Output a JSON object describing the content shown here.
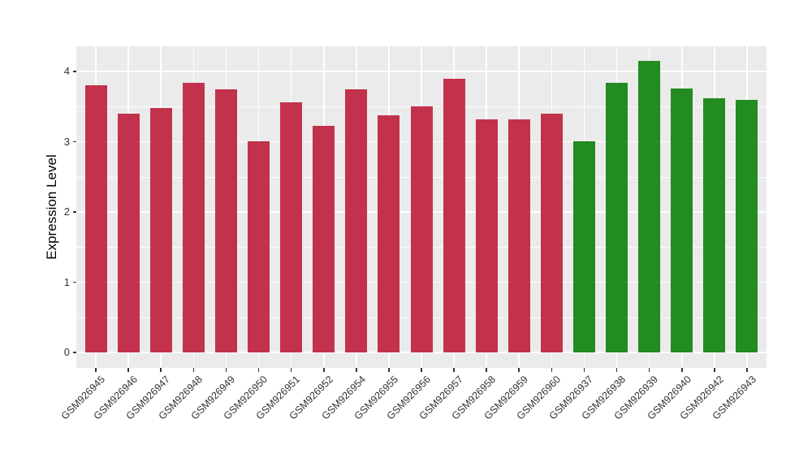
{
  "chart_data": {
    "type": "bar",
    "title": "",
    "xlabel": "",
    "ylabel": "Expression Level",
    "categories": [
      "GSM926945",
      "GSM926946",
      "GSM926947",
      "GSM926948",
      "GSM926949",
      "GSM926950",
      "GSM926951",
      "GSM926952",
      "GSM926954",
      "GSM926955",
      "GSM926956",
      "GSM926957",
      "GSM926958",
      "GSM926959",
      "GSM926960",
      "GSM926937",
      "GSM926938",
      "GSM926939",
      "GSM926940",
      "GSM926942",
      "GSM926943"
    ],
    "values": [
      3.8,
      3.4,
      3.48,
      3.84,
      3.74,
      3.01,
      3.56,
      3.22,
      3.75,
      3.37,
      3.5,
      3.9,
      3.32,
      3.32,
      3.4,
      3.01,
      3.84,
      4.15,
      3.76,
      3.62,
      3.59
    ],
    "bar_colors": [
      "#C3324C",
      "#C3324C",
      "#C3324C",
      "#C3324C",
      "#C3324C",
      "#C3324C",
      "#C3324C",
      "#C3324C",
      "#C3324C",
      "#C3324C",
      "#C3324C",
      "#C3324C",
      "#C3324C",
      "#C3324C",
      "#C3324C",
      "#228B22",
      "#228B22",
      "#228B22",
      "#228B22",
      "#228B22",
      "#228B22"
    ],
    "group_colors": {
      "left_group": "#C3324C",
      "right_group": "#228B22"
    },
    "yticks": [
      0,
      1,
      2,
      3,
      4
    ],
    "minor_yticks": [
      0.5,
      1.5,
      2.5,
      3.5
    ],
    "ylim": [
      -0.22,
      4.36
    ],
    "x_tick_rotation_deg": 45,
    "legend": "none",
    "grid": "on",
    "style": {
      "panel_background": "#EBEBEB",
      "gridline_color": "#FFFFFF",
      "tick_color": "#333333",
      "paper_background": "#FFFFFF"
    }
  }
}
